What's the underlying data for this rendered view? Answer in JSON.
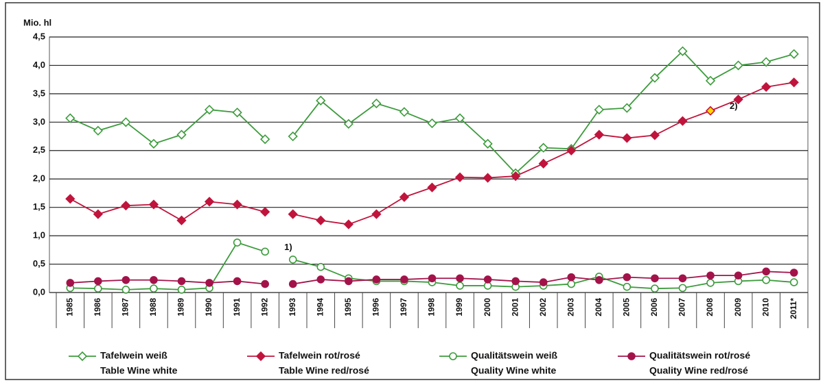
{
  "chart_data": {
    "type": "line",
    "y_label": "Mio. hl",
    "categories": [
      "1985",
      "1986",
      "1987",
      "1988",
      "1989",
      "1990",
      "1991",
      "1992",
      null,
      "1993",
      "1994",
      "1995",
      "1996",
      "1997",
      "1998",
      "1999",
      "2000",
      "2001",
      "2002",
      "2003",
      "2004",
      "2005",
      "2006",
      "2007",
      "2008",
      "2009",
      "2010",
      "2011*"
    ],
    "series": [
      {
        "name": "Tafelwein weiß",
        "name_en": "Table Wine white",
        "color": "#3b9b3b",
        "marker": "diamond",
        "filled": false,
        "values": [
          3.07,
          2.85,
          3.0,
          2.62,
          2.78,
          3.22,
          3.17,
          2.7,
          null,
          2.75,
          3.38,
          2.97,
          3.33,
          3.18,
          2.98,
          3.07,
          2.62,
          2.1,
          2.55,
          2.53,
          3.22,
          3.25,
          3.78,
          4.25,
          3.73,
          4.0,
          4.06,
          4.2
        ]
      },
      {
        "name": "Tafelwein rot/rosé",
        "name_en": "Table Wine red/rosé",
        "color": "#c0143c",
        "marker": "diamond",
        "filled": true,
        "values": [
          1.65,
          1.38,
          1.53,
          1.55,
          1.27,
          1.6,
          1.55,
          1.42,
          null,
          1.38,
          1.27,
          1.2,
          1.38,
          1.68,
          1.85,
          2.03,
          2.02,
          2.05,
          2.27,
          2.5,
          2.78,
          2.72,
          2.77,
          3.02,
          3.2,
          3.4,
          3.62,
          3.7
        ]
      },
      {
        "name": "Qualitätswein weiß",
        "name_en": "Quality Wine white",
        "color": "#3b9b3b",
        "marker": "circle",
        "filled": false,
        "values": [
          0.08,
          0.07,
          0.05,
          0.07,
          0.05,
          0.08,
          0.88,
          0.72,
          null,
          0.58,
          0.45,
          0.25,
          0.2,
          0.2,
          0.18,
          0.12,
          0.12,
          0.1,
          0.12,
          0.15,
          0.28,
          0.1,
          0.07,
          0.08,
          0.17,
          0.2,
          0.22,
          0.18
        ]
      },
      {
        "name": "Qualitätswein rot/rosé",
        "name_en": "Quality Wine red/rosé",
        "color": "#a3134a",
        "marker": "circle",
        "filled": true,
        "values": [
          0.17,
          0.2,
          0.22,
          0.22,
          0.2,
          0.17,
          0.2,
          0.15,
          null,
          0.15,
          0.23,
          0.2,
          0.23,
          0.23,
          0.25,
          0.25,
          0.23,
          0.2,
          0.18,
          0.27,
          0.22,
          0.27,
          0.25,
          0.25,
          0.3,
          0.3,
          0.37,
          0.35
        ]
      }
    ],
    "annotations": [
      {
        "text": "1)",
        "series_name": "Qualitätswein weiß",
        "category": "1992"
      },
      {
        "text": "2)",
        "series_name": "Tafelwein rot/rosé",
        "category": "2008",
        "marker_color": "#ffd700"
      }
    ],
    "ylim": [
      0,
      4.5
    ],
    "yticks": [
      {
        "value": 0,
        "label": "0,0"
      },
      {
        "value": 0.5,
        "label": "0,5"
      },
      {
        "value": 1,
        "label": "1,0"
      },
      {
        "value": 1.5,
        "label": "1,5"
      },
      {
        "value": 2,
        "label": "2,0"
      },
      {
        "value": 2.5,
        "label": "2,5"
      },
      {
        "value": 3,
        "label": "3,0"
      },
      {
        "value": 3.5,
        "label": "3,5"
      },
      {
        "value": 4,
        "label": "4,0"
      },
      {
        "value": 4.5,
        "label": "4,5"
      }
    ],
    "grid": true
  }
}
